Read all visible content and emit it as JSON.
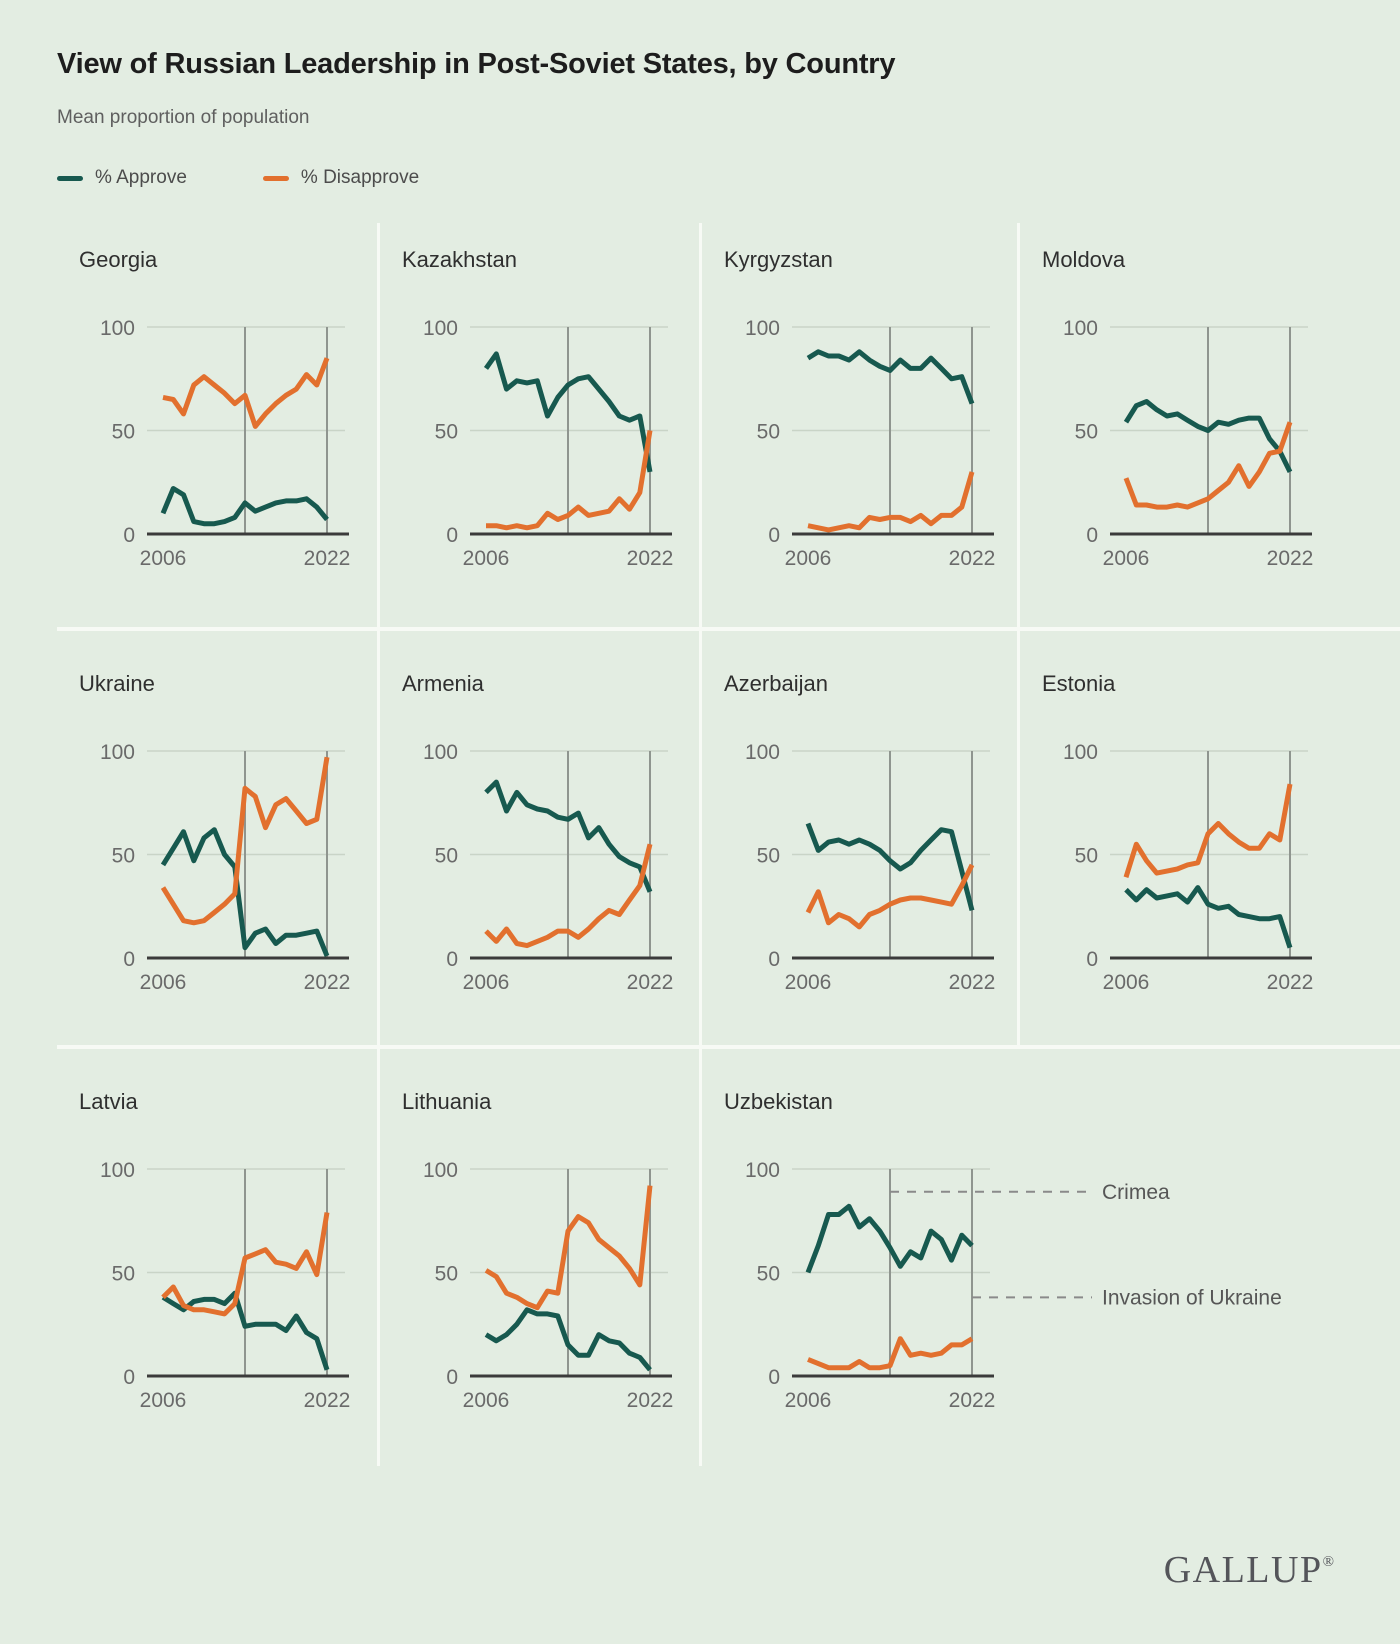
{
  "header": {
    "title": "View of Russian Leadership in Post-Soviet States, by Country",
    "subtitle": "Mean proportion of population"
  },
  "legend": {
    "approve": "% Approve",
    "disapprove": "% Disapprove"
  },
  "colors": {
    "approve": "#17594f",
    "disapprove": "#e2702e",
    "background": "#e3ede2",
    "divider": "#f7faf5",
    "grid_line": "#c9d4c7",
    "ref_line": "#8f958f",
    "axis": "#3b3b3b",
    "tick_text": "#6a6a6a",
    "annotation_line": "#8a8a8a",
    "annotation_text": "#565656"
  },
  "axes": {
    "y_ticks": [
      "100",
      "50",
      "0"
    ],
    "x_ticks": [
      "2006",
      "2022"
    ],
    "x_range": [
      2006,
      2022
    ],
    "y_range": [
      0,
      100
    ],
    "ref_years": [
      2014,
      2022
    ]
  },
  "annotations": [
    {
      "label": "Crimea",
      "ref_year": 2014,
      "y_value": 89
    },
    {
      "label": "Invasion of Ukraine",
      "ref_year": 2022,
      "y_value": 38
    }
  ],
  "chart_data": {
    "type": "line",
    "title": "View of Russian Leadership in Post-Soviet States, by Country",
    "x": [
      2006,
      2007,
      2008,
      2009,
      2010,
      2011,
      2012,
      2013,
      2014,
      2015,
      2016,
      2017,
      2018,
      2019,
      2020,
      2021,
      2022
    ],
    "series_names": [
      "% Approve",
      "% Disapprove"
    ],
    "ylim": [
      0,
      100
    ],
    "countries": [
      {
        "name": "Georgia",
        "approve": [
          10,
          22,
          19,
          6,
          5,
          5,
          6,
          8,
          15,
          11,
          13,
          15,
          16,
          16,
          17,
          13,
          7
        ],
        "disapprove": [
          66,
          65,
          58,
          72,
          76,
          72,
          68,
          63,
          67,
          52,
          58,
          63,
          67,
          70,
          77,
          72,
          85
        ]
      },
      {
        "name": "Kazakhstan",
        "approve": [
          80,
          87,
          70,
          74,
          73,
          74,
          57,
          66,
          72,
          75,
          76,
          70,
          64,
          57,
          55,
          57,
          30
        ],
        "disapprove": [
          4,
          4,
          3,
          4,
          3,
          4,
          10,
          7,
          9,
          13,
          9,
          10,
          11,
          17,
          12,
          20,
          50
        ]
      },
      {
        "name": "Kyrgyzstan",
        "approve": [
          85,
          88,
          86,
          86,
          84,
          88,
          84,
          81,
          79,
          84,
          80,
          80,
          85,
          80,
          75,
          76,
          63
        ],
        "disapprove": [
          4,
          3,
          2,
          3,
          4,
          3,
          8,
          7,
          8,
          8,
          6,
          9,
          5,
          9,
          9,
          13,
          30
        ]
      },
      {
        "name": "Moldova",
        "approve": [
          54,
          62,
          64,
          60,
          57,
          58,
          55,
          52,
          50,
          54,
          53,
          55,
          56,
          56,
          46,
          40,
          30
        ],
        "disapprove": [
          27,
          14,
          14,
          13,
          13,
          14,
          13,
          15,
          17,
          21,
          25,
          33,
          23,
          30,
          39,
          40,
          54
        ]
      },
      {
        "name": "Ukraine",
        "approve": [
          45,
          53,
          61,
          47,
          58,
          62,
          50,
          44,
          5,
          12,
          14,
          7,
          11,
          11,
          12,
          13,
          1
        ],
        "disapprove": [
          34,
          26,
          18,
          17,
          18,
          22,
          26,
          31,
          82,
          78,
          63,
          74,
          77,
          71,
          65,
          67,
          97
        ]
      },
      {
        "name": "Armenia",
        "approve": [
          80,
          85,
          71,
          80,
          74,
          72,
          71,
          68,
          67,
          70,
          58,
          63,
          55,
          49,
          46,
          44,
          32
        ],
        "disapprove": [
          13,
          8,
          14,
          7,
          6,
          8,
          10,
          13,
          13,
          10,
          14,
          19,
          23,
          21,
          28,
          35,
          55
        ]
      },
      {
        "name": "Azerbaijan",
        "approve": [
          65,
          52,
          56,
          57,
          55,
          57,
          55,
          52,
          47,
          43,
          46,
          52,
          57,
          62,
          61,
          42,
          23
        ],
        "disapprove": [
          22,
          32,
          17,
          21,
          19,
          15,
          21,
          23,
          26,
          28,
          29,
          29,
          28,
          27,
          26,
          35,
          45
        ]
      },
      {
        "name": "Estonia",
        "approve": [
          33,
          28,
          33,
          29,
          30,
          31,
          27,
          34,
          26,
          24,
          25,
          21,
          20,
          19,
          19,
          20,
          5
        ],
        "disapprove": [
          39,
          55,
          47,
          41,
          42,
          43,
          45,
          46,
          60,
          65,
          60,
          56,
          53,
          53,
          60,
          57,
          84
        ]
      },
      {
        "name": "Latvia",
        "approve": [
          38,
          35,
          32,
          36,
          37,
          37,
          35,
          40,
          24,
          25,
          25,
          25,
          22,
          29,
          21,
          18,
          3
        ],
        "disapprove": [
          38,
          43,
          34,
          32,
          32,
          31,
          30,
          35,
          57,
          59,
          61,
          55,
          54,
          52,
          60,
          49,
          79
        ]
      },
      {
        "name": "Lithuania",
        "approve": [
          20,
          17,
          20,
          25,
          32,
          30,
          30,
          29,
          15,
          10,
          10,
          20,
          17,
          16,
          11,
          9,
          3
        ],
        "disapprove": [
          51,
          48,
          40,
          38,
          35,
          33,
          41,
          40,
          70,
          77,
          74,
          66,
          62,
          58,
          52,
          44,
          92
        ]
      },
      {
        "name": "Uzbekistan",
        "wide": true,
        "approve": [
          50,
          63,
          78,
          78,
          82,
          72,
          76,
          70,
          62,
          53,
          60,
          57,
          70,
          66,
          56,
          68,
          63
        ],
        "disapprove": [
          8,
          6,
          4,
          4,
          4,
          7,
          4,
          4,
          5,
          18,
          10,
          11,
          10,
          11,
          15,
          15,
          18
        ]
      }
    ]
  },
  "footer": {
    "logo": "GALLUP",
    "registered": "®"
  }
}
